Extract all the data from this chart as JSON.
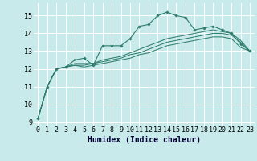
{
  "xlabel": "Humidex (Indice chaleur)",
  "bg_color": "#c8eaea",
  "grid_color": "#b0d8d8",
  "line_color": "#2e7d6e",
  "xlim": [
    -0.5,
    23.5
  ],
  "ylim": [
    8.8,
    15.7
  ],
  "yticks": [
    9,
    10,
    11,
    12,
    13,
    14,
    15
  ],
  "xticks": [
    0,
    1,
    2,
    3,
    4,
    5,
    6,
    7,
    8,
    9,
    10,
    11,
    12,
    13,
    14,
    15,
    16,
    17,
    18,
    19,
    20,
    21,
    22,
    23
  ],
  "series": [
    [
      9.2,
      11.0,
      12.0,
      12.1,
      12.5,
      12.6,
      12.2,
      13.3,
      13.3,
      13.3,
      13.7,
      14.4,
      14.5,
      15.0,
      15.2,
      15.0,
      14.9,
      14.2,
      14.3,
      14.4,
      14.2,
      14.0,
      13.4,
      13.0
    ],
    [
      9.2,
      11.0,
      12.0,
      12.1,
      12.2,
      12.1,
      12.2,
      12.3,
      12.4,
      12.5,
      12.6,
      12.8,
      12.9,
      13.1,
      13.3,
      13.4,
      13.5,
      13.6,
      13.7,
      13.8,
      13.8,
      13.7,
      13.2,
      13.0
    ],
    [
      9.2,
      11.0,
      12.0,
      12.1,
      12.2,
      12.2,
      12.3,
      12.4,
      12.5,
      12.6,
      12.8,
      12.9,
      13.1,
      13.3,
      13.5,
      13.6,
      13.7,
      13.8,
      13.9,
      14.0,
      14.0,
      13.9,
      13.5,
      13.0
    ],
    [
      9.2,
      11.0,
      12.0,
      12.1,
      12.3,
      12.3,
      12.3,
      12.5,
      12.6,
      12.7,
      12.9,
      13.1,
      13.3,
      13.5,
      13.7,
      13.8,
      13.9,
      14.0,
      14.1,
      14.2,
      14.1,
      14.0,
      13.6,
      13.0
    ]
  ],
  "fontsize_label": 6.5,
  "fontsize_tick": 6.0,
  "xlabel_fontsize": 7.0
}
